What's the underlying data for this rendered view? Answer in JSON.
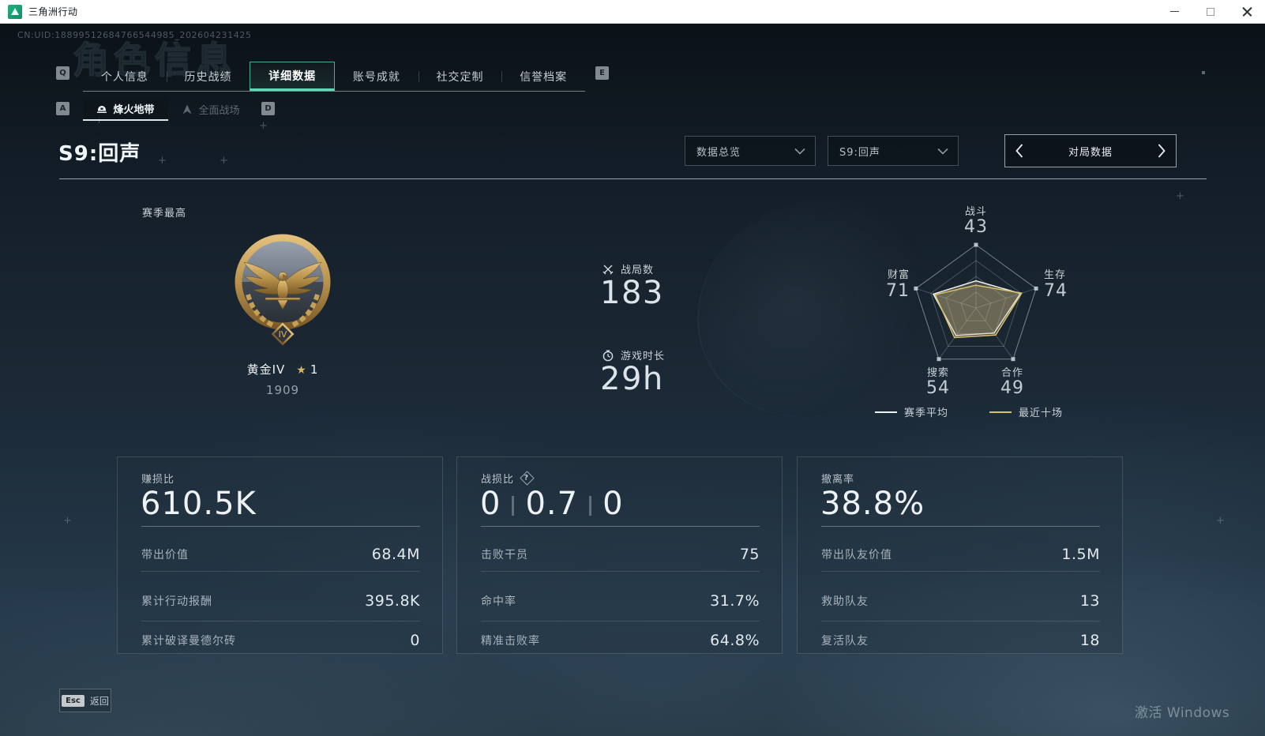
{
  "window": {
    "title": "三角洲行动"
  },
  "header": {
    "uid": "CN:UID:18899512684766544985_202604231425",
    "watermark": "角色信息"
  },
  "tabs": {
    "key_left": "Q",
    "key_right": "E",
    "items": [
      {
        "label": "个人信息",
        "active": false
      },
      {
        "label": "历史战绩",
        "active": false
      },
      {
        "label": "详细数据",
        "active": true
      },
      {
        "label": "账号成就",
        "active": false
      },
      {
        "label": "社交定制",
        "active": false
      },
      {
        "label": "信誉档案",
        "active": false
      }
    ]
  },
  "subtabs": {
    "key_left": "A",
    "key_right": "D",
    "items": [
      {
        "label": "烽火地带",
        "active": true
      },
      {
        "label": "全面战场",
        "active": false
      }
    ]
  },
  "season": {
    "heading": "S9:回声"
  },
  "filters": {
    "scope_dropdown": "数据总览",
    "season_dropdown": "S9:回声",
    "pager_label": "对局数据"
  },
  "rank": {
    "section_label": "赛季最高",
    "name": "黄金IV",
    "star_icon": "★",
    "star_count": "1",
    "points": "1909",
    "tier": "IV"
  },
  "overview_stats": [
    {
      "icon": "crossed-swords",
      "label": "战局数",
      "value": "183"
    },
    {
      "icon": "clock",
      "label": "游戏时长",
      "value": "29h"
    }
  ],
  "chart_data": {
    "type": "radar",
    "max": 100,
    "grid_levels": 4,
    "axes": [
      {
        "label": "战斗",
        "value": 43
      },
      {
        "label": "生存",
        "value": 74
      },
      {
        "label": "合作",
        "value": 49
      },
      {
        "label": "搜索",
        "value": 54
      },
      {
        "label": "财富",
        "value": 71
      }
    ],
    "series": [
      {
        "name": "赛季平均",
        "color": "#eef1f2",
        "values": [
          43,
          74,
          49,
          54,
          71
        ]
      },
      {
        "name": "最近十场",
        "color": "#d9c06a",
        "values": [
          36,
          76,
          53,
          58,
          68
        ]
      }
    ],
    "fill": "rgba(206,186,132,0.26)",
    "legend_position": "bottom"
  },
  "cards": [
    {
      "title": "赚损比",
      "value": "610.5K",
      "rows": [
        {
          "label": "带出价值",
          "value": "68.4M"
        },
        {
          "label": "累计行动报酬",
          "value": "395.8K"
        },
        {
          "label": "累计破译曼德尔砖",
          "value": "0"
        }
      ]
    },
    {
      "title": "战损比",
      "help_glyph": "?",
      "value_parts": [
        "0",
        "0.7",
        "0"
      ],
      "rows": [
        {
          "label": "击败干员",
          "value": "75"
        },
        {
          "label": "命中率",
          "value": "31.7%"
        },
        {
          "label": "精准击败率",
          "value": "64.8%"
        }
      ]
    },
    {
      "title": "撤离率",
      "value": "38.8%",
      "rows": [
        {
          "label": "带出队友价值",
          "value": "1.5M"
        },
        {
          "label": "救助队友",
          "value": "13"
        },
        {
          "label": "复活队友",
          "value": "18"
        }
      ]
    }
  ],
  "footer": {
    "esc_key": "Esc",
    "back_label": "返回",
    "windows_watermark": "激活 Windows"
  },
  "colors": {
    "accent_teal": "#43b094",
    "gold": "#d9c06a",
    "radar_white": "#eef1f2"
  }
}
